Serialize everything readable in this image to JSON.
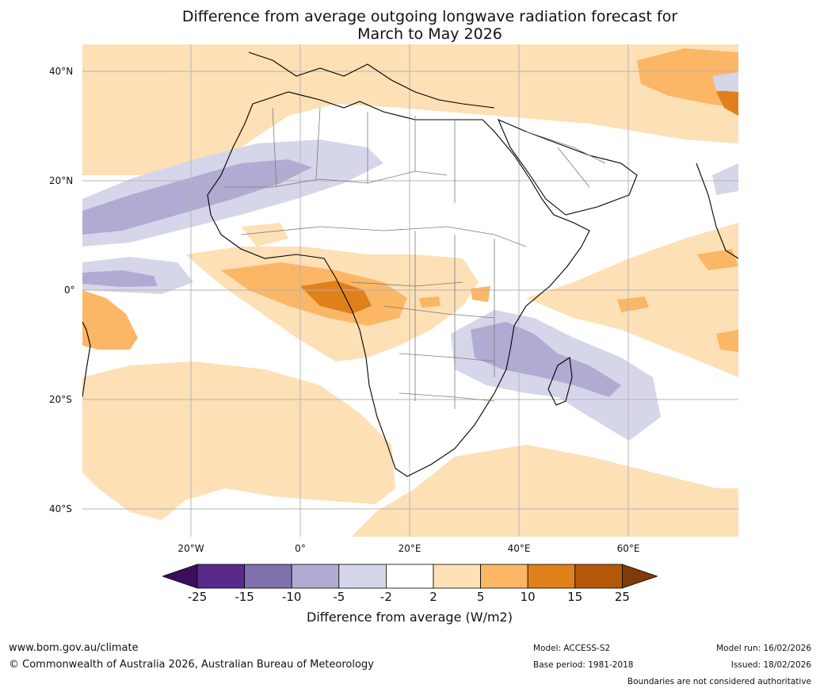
{
  "title": {
    "line1": "Difference from average outgoing longwave radiation forecast for",
    "line2": "March to May 2026"
  },
  "map": {
    "region": "Africa and surrounding oceans",
    "lat_labels": [
      "40°N",
      "20°N",
      "0°",
      "20°S",
      "40°S"
    ],
    "lon_labels": [
      "20°W",
      "0°",
      "20°E",
      "40°E",
      "60°E"
    ]
  },
  "colorbar": {
    "ticks": [
      "-25",
      "-15",
      "-10",
      "-5",
      "-2",
      "2",
      "5",
      "10",
      "15",
      "25"
    ],
    "colors": [
      "#3a0f5c",
      "#5a2a8a",
      "#8070ad",
      "#b1aad2",
      "#d6d6ea",
      "#ffffff",
      "#fde0b5",
      "#fbb766",
      "#e0801a",
      "#b35809",
      "#7f3b08"
    ],
    "title": "Difference from average (W/m2)"
  },
  "footer": {
    "website": "www.bom.gov.au/climate",
    "copyright": "© Commonwealth of Australia 2026, Australian Bureau of Meteorology",
    "model": "Model: ACCESS-S2",
    "base_period": "Base period: 1981-2018",
    "model_run": "Model run: 16/02/2026",
    "issued": "Issued: 18/02/2026",
    "disclaimer": "Boundaries are not considered authoritative"
  }
}
